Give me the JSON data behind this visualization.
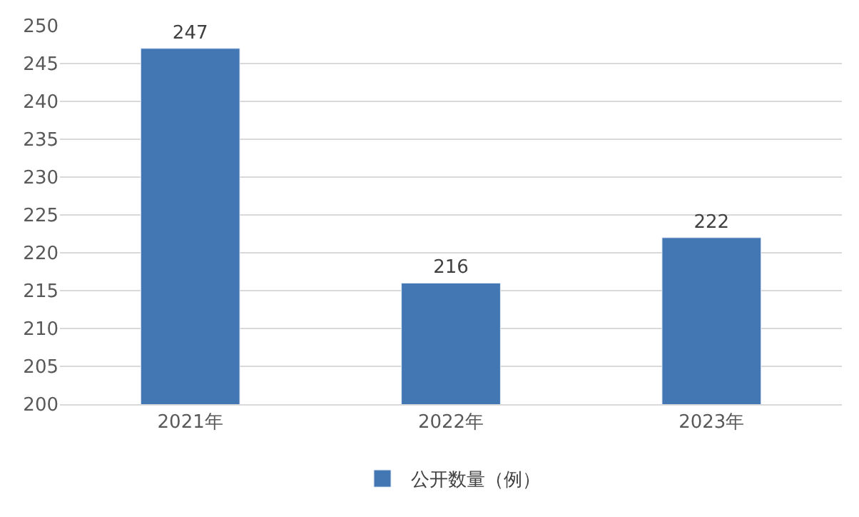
{
  "chart_data": {
    "type": "bar",
    "categories": [
      "2021年",
      "2022年",
      "2023年"
    ],
    "series": [
      {
        "name": "公开数量（例）",
        "color": "#4277b4",
        "values": [
          247,
          216,
          222
        ]
      }
    ],
    "ylim": [
      200,
      250
    ],
    "yticks": [
      200,
      205,
      210,
      215,
      220,
      225,
      230,
      235,
      240,
      245,
      250
    ],
    "grid": "y",
    "legend": "bottom",
    "data_labels": true
  }
}
